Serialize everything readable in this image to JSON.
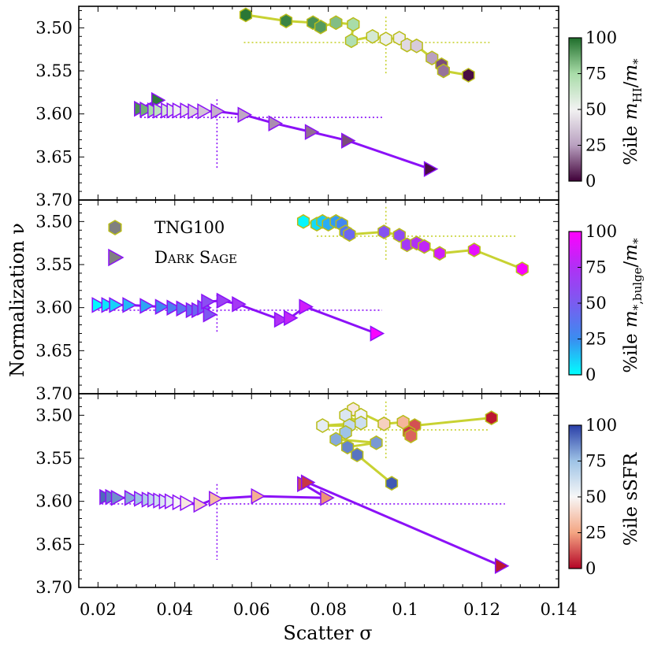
{
  "chart_data": {
    "type": "scatter",
    "xlabel": "Scatter σ",
    "ylabel": "Normalization ν",
    "xlim": [
      0.015,
      0.14
    ],
    "ylim": [
      3.7,
      3.475
    ],
    "xticks": [
      "0.02",
      "0.04",
      "0.06",
      "0.08",
      "0.1",
      "0.12",
      "0.14"
    ],
    "yticks": [
      "3.50",
      "3.55",
      "3.60",
      "3.65",
      "3.70"
    ],
    "legend": [
      {
        "label": "TNG100",
        "marker": "hexagon"
      },
      {
        "label": "Dark Sage",
        "marker": "triangle"
      }
    ],
    "colorbar_ticks": [
      "0",
      "25",
      "50",
      "75",
      "100"
    ],
    "panels": [
      {
        "name": "HI fraction",
        "colorbar_label": "%ile m_HI/m_*",
        "colorbar_title_parts": [
          "%ile ",
          "m",
          "HI",
          "/",
          "m",
          "*"
        ],
        "colormap": [
          "#3f0038",
          "#b9a0c0",
          "#f2f2f2",
          "#a8dca8",
          "#1f6e2b"
        ],
        "tng_crosshair": {
          "x": 0.095,
          "y": 3.517,
          "x_range": [
            0.058,
            0.122
          ],
          "y_range": [
            3.487,
            3.553
          ]
        },
        "sage_crosshair": {
          "x": 0.051,
          "y": 3.604,
          "x_range": [
            0.031,
            0.094
          ],
          "y_range": [
            3.583,
            3.663
          ]
        },
        "tng": [
          {
            "x": 0.0585,
            "y": 3.485,
            "p": 98
          },
          {
            "x": 0.069,
            "y": 3.492,
            "p": 95
          },
          {
            "x": 0.076,
            "y": 3.494,
            "p": 92
          },
          {
            "x": 0.078,
            "y": 3.499,
            "p": 90
          },
          {
            "x": 0.082,
            "y": 3.494,
            "p": 82
          },
          {
            "x": 0.0865,
            "y": 3.496,
            "p": 75
          },
          {
            "x": 0.086,
            "y": 3.515,
            "p": 72
          },
          {
            "x": 0.0915,
            "y": 3.51,
            "p": 60
          },
          {
            "x": 0.095,
            "y": 3.513,
            "p": 52
          },
          {
            "x": 0.0985,
            "y": 3.512,
            "p": 48
          },
          {
            "x": 0.1005,
            "y": 3.52,
            "p": 42
          },
          {
            "x": 0.103,
            "y": 3.521,
            "p": 38
          },
          {
            "x": 0.107,
            "y": 3.535,
            "p": 25
          },
          {
            "x": 0.1095,
            "y": 3.543,
            "p": 12
          },
          {
            "x": 0.11,
            "y": 3.55,
            "p": 18
          },
          {
            "x": 0.1165,
            "y": 3.555,
            "p": 2
          }
        ],
        "sage": [
          {
            "x": 0.0355,
            "y": 3.584,
            "p": 97
          },
          {
            "x": 0.031,
            "y": 3.594,
            "p": 92
          },
          {
            "x": 0.0325,
            "y": 3.595,
            "p": 85
          },
          {
            "x": 0.0345,
            "y": 3.596,
            "p": 75
          },
          {
            "x": 0.036,
            "y": 3.596,
            "p": 68
          },
          {
            "x": 0.038,
            "y": 3.596,
            "p": 60
          },
          {
            "x": 0.0395,
            "y": 3.596,
            "p": 55
          },
          {
            "x": 0.041,
            "y": 3.596,
            "p": 50
          },
          {
            "x": 0.043,
            "y": 3.596,
            "p": 45
          },
          {
            "x": 0.045,
            "y": 3.597,
            "p": 40
          },
          {
            "x": 0.0475,
            "y": 3.597,
            "p": 36
          },
          {
            "x": 0.051,
            "y": 3.597,
            "p": 30
          },
          {
            "x": 0.058,
            "y": 3.601,
            "p": 27
          },
          {
            "x": 0.066,
            "y": 3.611,
            "p": 22
          },
          {
            "x": 0.0755,
            "y": 3.621,
            "p": 17
          },
          {
            "x": 0.085,
            "y": 3.631,
            "p": 12
          },
          {
            "x": 0.1065,
            "y": 3.664,
            "p": 2
          }
        ]
      },
      {
        "name": "Bulge fraction",
        "colorbar_label": "%ile m_*,bulge/m_*",
        "colorbar_title_parts": [
          "%ile ",
          "m",
          "*,bulge",
          "/",
          "m",
          "*"
        ],
        "colormap": [
          "#00ffff",
          "#3a8df0",
          "#7a5cf0",
          "#b030f5",
          "#ff00ff"
        ],
        "tng_crosshair": {
          "x": 0.095,
          "y": 3.517,
          "x_range": [
            0.077,
            0.129
          ],
          "y_range": [
            3.483,
            3.545
          ]
        },
        "sage_crosshair": {
          "x": 0.051,
          "y": 3.603,
          "x_range": [
            0.019,
            0.094
          ],
          "y_range": [
            3.585,
            3.628
          ]
        },
        "tng": [
          {
            "x": 0.0735,
            "y": 3.5,
            "p": 2
          },
          {
            "x": 0.077,
            "y": 3.503,
            "p": 8
          },
          {
            "x": 0.0785,
            "y": 3.5,
            "p": 12
          },
          {
            "x": 0.08,
            "y": 3.503,
            "p": 18
          },
          {
            "x": 0.082,
            "y": 3.5,
            "p": 22
          },
          {
            "x": 0.0835,
            "y": 3.503,
            "p": 28
          },
          {
            "x": 0.0845,
            "y": 3.512,
            "p": 35
          },
          {
            "x": 0.0855,
            "y": 3.515,
            "p": 45
          },
          {
            "x": 0.0945,
            "y": 3.512,
            "p": 55
          },
          {
            "x": 0.0985,
            "y": 3.516,
            "p": 60
          },
          {
            "x": 0.1005,
            "y": 3.527,
            "p": 70
          },
          {
            "x": 0.103,
            "y": 3.525,
            "p": 75
          },
          {
            "x": 0.105,
            "y": 3.529,
            "p": 80
          },
          {
            "x": 0.109,
            "y": 3.537,
            "p": 85
          },
          {
            "x": 0.118,
            "y": 3.533,
            "p": 92
          },
          {
            "x": 0.1305,
            "y": 3.555,
            "p": 98
          }
        ],
        "sage": [
          {
            "x": 0.02,
            "y": 3.597,
            "p": 2
          },
          {
            "x": 0.0225,
            "y": 3.597,
            "p": 6
          },
          {
            "x": 0.0245,
            "y": 3.597,
            "p": 10
          },
          {
            "x": 0.028,
            "y": 3.597,
            "p": 15
          },
          {
            "x": 0.0325,
            "y": 3.598,
            "p": 20
          },
          {
            "x": 0.0365,
            "y": 3.599,
            "p": 26
          },
          {
            "x": 0.0395,
            "y": 3.6,
            "p": 32
          },
          {
            "x": 0.042,
            "y": 3.601,
            "p": 38
          },
          {
            "x": 0.0445,
            "y": 3.603,
            "p": 42
          },
          {
            "x": 0.046,
            "y": 3.603,
            "p": 45
          },
          {
            "x": 0.0475,
            "y": 3.6,
            "p": 48
          },
          {
            "x": 0.049,
            "y": 3.608,
            "p": 52
          },
          {
            "x": 0.0485,
            "y": 3.593,
            "p": 58
          },
          {
            "x": 0.0525,
            "y": 3.592,
            "p": 65
          },
          {
            "x": 0.0565,
            "y": 3.596,
            "p": 70
          },
          {
            "x": 0.0675,
            "y": 3.614,
            "p": 75
          },
          {
            "x": 0.07,
            "y": 3.612,
            "p": 80
          },
          {
            "x": 0.074,
            "y": 3.599,
            "p": 85
          },
          {
            "x": 0.0925,
            "y": 3.63,
            "p": 98
          }
        ]
      },
      {
        "name": "sSFR",
        "colorbar_label": "%ile sSFR",
        "colorbar_title_parts": [
          "%ile sSFR"
        ],
        "colormap": [
          "#b40426",
          "#f4a582",
          "#f7f7f7",
          "#9ec3e6",
          "#2a3fa8"
        ],
        "tng_crosshair": {
          "x": 0.095,
          "y": 3.517,
          "x_range": [
            0.078,
            0.122
          ],
          "y_range": [
            3.484,
            3.552
          ]
        },
        "sage_crosshair": {
          "x": 0.051,
          "y": 3.603,
          "x_range": [
            0.021,
            0.126
          ],
          "y_range": [
            3.58,
            3.668
          ]
        },
        "tng": [
          {
            "x": 0.1225,
            "y": 3.503,
            "p": 3
          },
          {
            "x": 0.1025,
            "y": 3.512,
            "p": 12
          },
          {
            "x": 0.101,
            "y": 3.52,
            "p": 8
          },
          {
            "x": 0.1015,
            "y": 3.524,
            "p": 15
          },
          {
            "x": 0.0995,
            "y": 3.508,
            "p": 30
          },
          {
            "x": 0.0945,
            "y": 3.51,
            "p": 38
          },
          {
            "x": 0.0865,
            "y": 3.493,
            "p": 45
          },
          {
            "x": 0.0885,
            "y": 3.5,
            "p": 52
          },
          {
            "x": 0.0845,
            "y": 3.5,
            "p": 58
          },
          {
            "x": 0.0885,
            "y": 3.509,
            "p": 62
          },
          {
            "x": 0.0785,
            "y": 3.512,
            "p": 55
          },
          {
            "x": 0.0855,
            "y": 3.512,
            "p": 65
          },
          {
            "x": 0.0845,
            "y": 3.52,
            "p": 75
          },
          {
            "x": 0.082,
            "y": 3.528,
            "p": 80
          },
          {
            "x": 0.0925,
            "y": 3.532,
            "p": 83
          },
          {
            "x": 0.085,
            "y": 3.537,
            "p": 87
          },
          {
            "x": 0.0875,
            "y": 3.546,
            "p": 90
          },
          {
            "x": 0.0965,
            "y": 3.579,
            "p": 95
          }
        ],
        "sage": [
          {
            "x": 0.022,
            "y": 3.595,
            "p": 92
          },
          {
            "x": 0.0235,
            "y": 3.595,
            "p": 88
          },
          {
            "x": 0.025,
            "y": 3.596,
            "p": 85
          },
          {
            "x": 0.0285,
            "y": 3.596,
            "p": 80
          },
          {
            "x": 0.031,
            "y": 3.597,
            "p": 75
          },
          {
            "x": 0.033,
            "y": 3.598,
            "p": 70
          },
          {
            "x": 0.0345,
            "y": 3.598,
            "p": 66
          },
          {
            "x": 0.036,
            "y": 3.599,
            "p": 62
          },
          {
            "x": 0.0375,
            "y": 3.6,
            "p": 58
          },
          {
            "x": 0.039,
            "y": 3.6,
            "p": 55
          },
          {
            "x": 0.041,
            "y": 3.601,
            "p": 50
          },
          {
            "x": 0.043,
            "y": 3.602,
            "p": 45
          },
          {
            "x": 0.0465,
            "y": 3.604,
            "p": 38
          },
          {
            "x": 0.0505,
            "y": 3.597,
            "p": 32
          },
          {
            "x": 0.0615,
            "y": 3.594,
            "p": 28
          },
          {
            "x": 0.0795,
            "y": 3.596,
            "p": 22
          },
          {
            "x": 0.0735,
            "y": 3.58,
            "p": 12
          },
          {
            "x": 0.0745,
            "y": 3.578,
            "p": 8
          },
          {
            "x": 0.125,
            "y": 3.675,
            "p": 3
          }
        ]
      }
    ]
  },
  "colors": {
    "tng_line": "#c8d232",
    "sage_line": "#8b11f7",
    "tng_edge": "#b8bc18",
    "sage_edge": "#8b11f7"
  }
}
